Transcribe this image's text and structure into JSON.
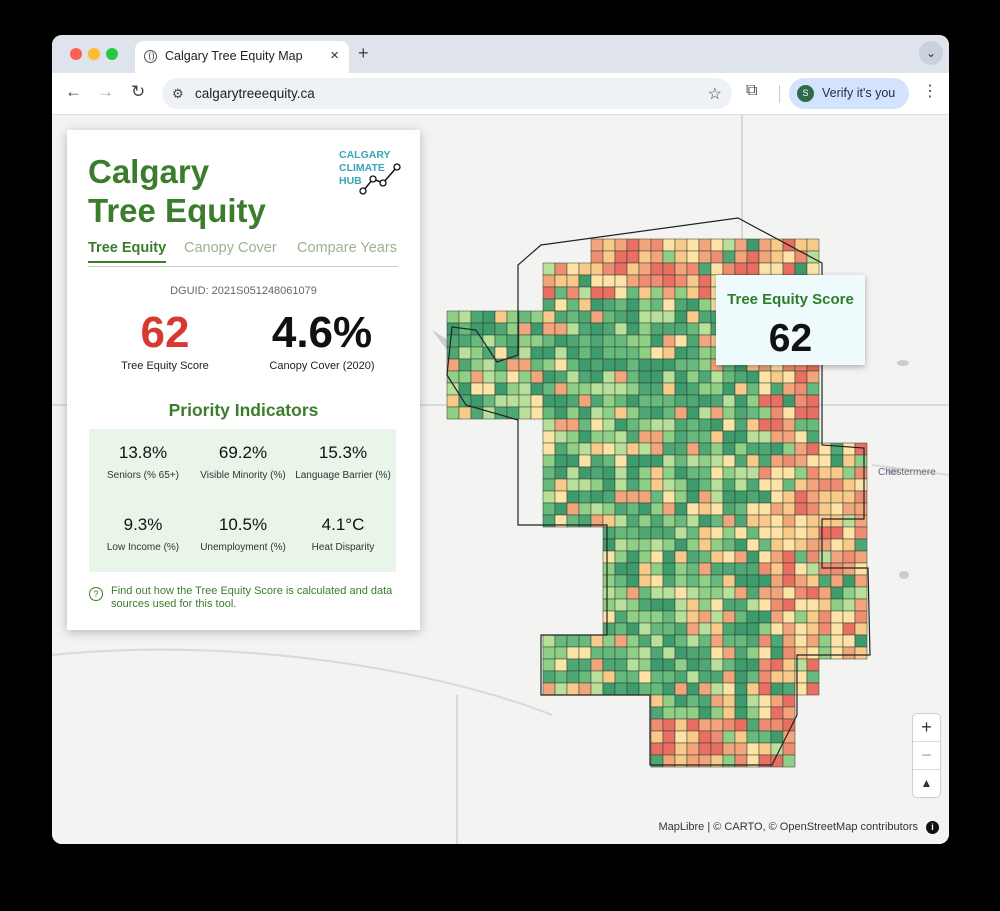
{
  "browser": {
    "tab_title": "Calgary Tree Equity Map",
    "url": "calgarytreeequity.ca",
    "profile_label": "Verify it's you",
    "profile_initial": "S"
  },
  "panel": {
    "title_line1": "Calgary",
    "title_line2": "Tree Equity",
    "logo_line1": "CALGARY",
    "logo_line2": "CLIMATE",
    "logo_line3": "HUB",
    "tabs": [
      "Tree Equity",
      "Canopy Cover",
      "Compare Years"
    ],
    "dguid": "DGUID: 2021S051248061079",
    "score": {
      "value": "62",
      "label": "Tree Equity Score",
      "color": "#d63a2f"
    },
    "canopy": {
      "value": "4.6%",
      "label": "Canopy Cover (2020)"
    },
    "priority_title": "Priority Indicators",
    "indicators": [
      {
        "value": "13.8%",
        "label": "Seniors (% 65+)"
      },
      {
        "value": "69.2%",
        "label": "Visible Minority (%)"
      },
      {
        "value": "15.3%",
        "label": "Language Barrier (%)"
      },
      {
        "value": "9.3%",
        "label": "Low Income (%)"
      },
      {
        "value": "10.5%",
        "label": "Unemployment (%)"
      },
      {
        "value": "4.1°C",
        "label": "Heat Disparity"
      }
    ],
    "help_text": "Find out how the Tree Equity Score is calculated and data sources used for this tool."
  },
  "tooltip": {
    "title": "Tree Equity Score",
    "value": "62"
  },
  "map": {
    "place_label": "Chestermere",
    "attribution": "MapLibre | © CARTO, © OpenStreetMap contributors",
    "zoom_in": "+",
    "zoom_out": "−",
    "compass": "▲"
  }
}
